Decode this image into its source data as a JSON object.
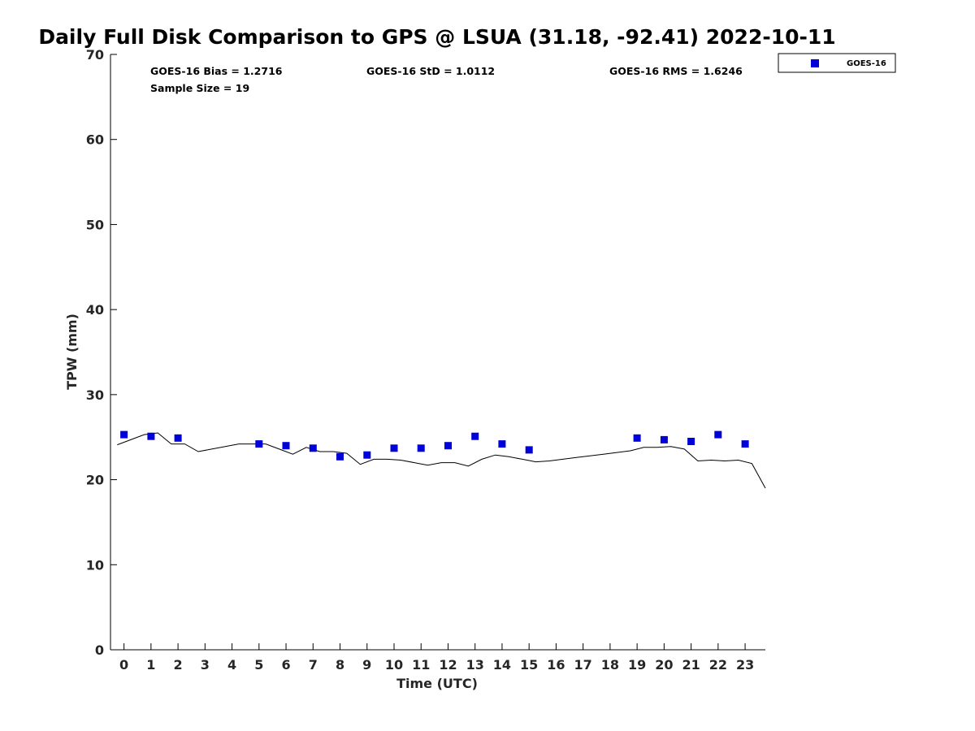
{
  "chart_data": {
    "type": "scatter",
    "title": "Daily Full Disk Comparison to GPS @ LSUA (31.18, -92.41) 2022-10-11",
    "xlabel": "Time (UTC)",
    "ylabel": "TPW (mm)",
    "xlim": [
      -0.5,
      23.75
    ],
    "ylim": [
      0,
      70
    ],
    "x_ticks": [
      0,
      1,
      2,
      3,
      4,
      5,
      6,
      7,
      8,
      9,
      10,
      11,
      12,
      13,
      14,
      15,
      16,
      17,
      18,
      19,
      20,
      21,
      22,
      23
    ],
    "y_ticks": [
      0,
      10,
      20,
      30,
      40,
      50,
      60,
      70
    ],
    "grid": false,
    "legend_position": "top-right, outside plot",
    "stats": {
      "bias": "GOES-16 Bias = 1.2716",
      "std": "GOES-16 StD = 1.0112",
      "rms": "GOES-16 RMS = 1.6246",
      "sample_size": "Sample Size = 19"
    },
    "series": [
      {
        "name": "GOES-16",
        "marker": "square",
        "color": "#0000d8",
        "x": [
          0,
          1,
          2,
          5,
          6,
          7,
          8,
          9,
          10,
          11,
          12,
          13,
          14,
          15,
          19,
          20,
          21,
          22,
          23
        ],
        "y": [
          25.3,
          25.1,
          24.9,
          24.2,
          24.0,
          23.7,
          22.7,
          22.9,
          23.7,
          23.7,
          24.0,
          25.1,
          24.2,
          23.5,
          24.9,
          24.7,
          24.5,
          25.3,
          24.2
        ]
      },
      {
        "marker": "line",
        "color": "#000000",
        "x": [
          -0.25,
          0.25,
          0.75,
          1.25,
          1.75,
          2.25,
          2.75,
          3.25,
          3.75,
          4.25,
          4.75,
          5.25,
          5.75,
          6.25,
          6.75,
          7.25,
          7.75,
          8.25,
          8.75,
          9.25,
          9.75,
          10.25,
          10.75,
          11.25,
          11.75,
          12.25,
          12.75,
          13.25,
          13.75,
          14.25,
          14.75,
          15.25,
          15.75,
          16.25,
          16.75,
          17.25,
          17.75,
          18.25,
          18.75,
          19.25,
          19.75,
          20.25,
          20.75,
          21.25,
          21.75,
          22.25,
          22.75,
          23.25,
          23.75
        ],
        "y": [
          24.1,
          24.7,
          25.3,
          25.5,
          24.2,
          24.2,
          23.3,
          23.6,
          23.9,
          24.2,
          24.2,
          24.2,
          23.6,
          23.0,
          23.8,
          23.3,
          23.3,
          23.1,
          21.8,
          22.4,
          22.4,
          22.3,
          22.0,
          21.7,
          22.0,
          22.0,
          21.6,
          22.4,
          22.9,
          22.7,
          22.4,
          22.1,
          22.2,
          22.4,
          22.6,
          22.8,
          23.0,
          23.2,
          23.4,
          23.8,
          23.8,
          23.9,
          23.6,
          22.2,
          22.3,
          22.2,
          22.3,
          21.9,
          19.0
        ]
      }
    ]
  }
}
